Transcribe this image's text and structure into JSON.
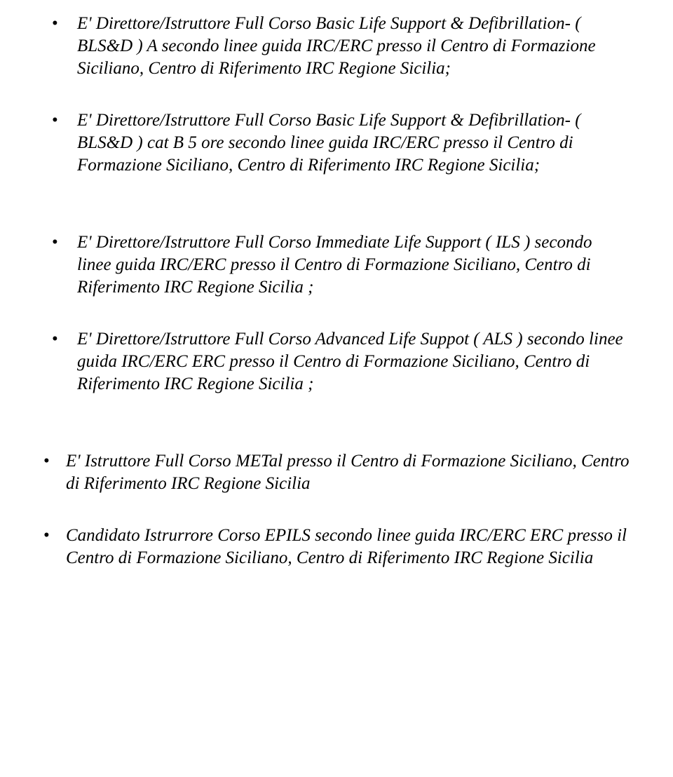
{
  "items_group1": [
    "E' Direttore/Istruttore Full  Corso Basic Life Support & Defibrillation- ( BLS&D )  A secondo  linee guida IRC/ERC presso  il Centro  di Formazione Siciliano, Centro di  Riferimento IRC  Regione Sicilia;",
    "E' Direttore/Istruttore Full  Corso Basic Life Support & Defibrillation- ( BLS&D )  cat B 5 ore  secondo linee guida IRC/ERC presso  il Centro di Formazione Siciliano, Centro di  Riferimento IRC  Regione Sicilia;"
  ],
  "items_group2": [
    "E' Direttore/Istruttore Full  Corso Immediate  Life Support ( ILS )  secondo  linee guida IRC/ERC presso  il Centro  di Formazione Siciliano, Centro di  Riferimento IRC  Regione Sicilia ;",
    "E' Direttore/Istruttore Full  Corso  Advanced Life Suppot ( ALS ) secondo  linee guida IRC/ERC ERC  presso  il Centro  di Formazione Siciliano, Centro di Riferimento IRC Regione  Sicilia ;"
  ],
  "items_group3": [
    " E' Istruttore Full  Corso METal  presso  il Centro  di Formazione Siciliano, Centro di Riferimento IRC  Regione Sicilia",
    "Candidato Istrurrore  Corso EPILS  secondo  linee guida IRC/ERC ERC  presso  il Centro di Formazione Siciliano, Centro di Riferimento IRC  Regione Sicilia"
  ]
}
